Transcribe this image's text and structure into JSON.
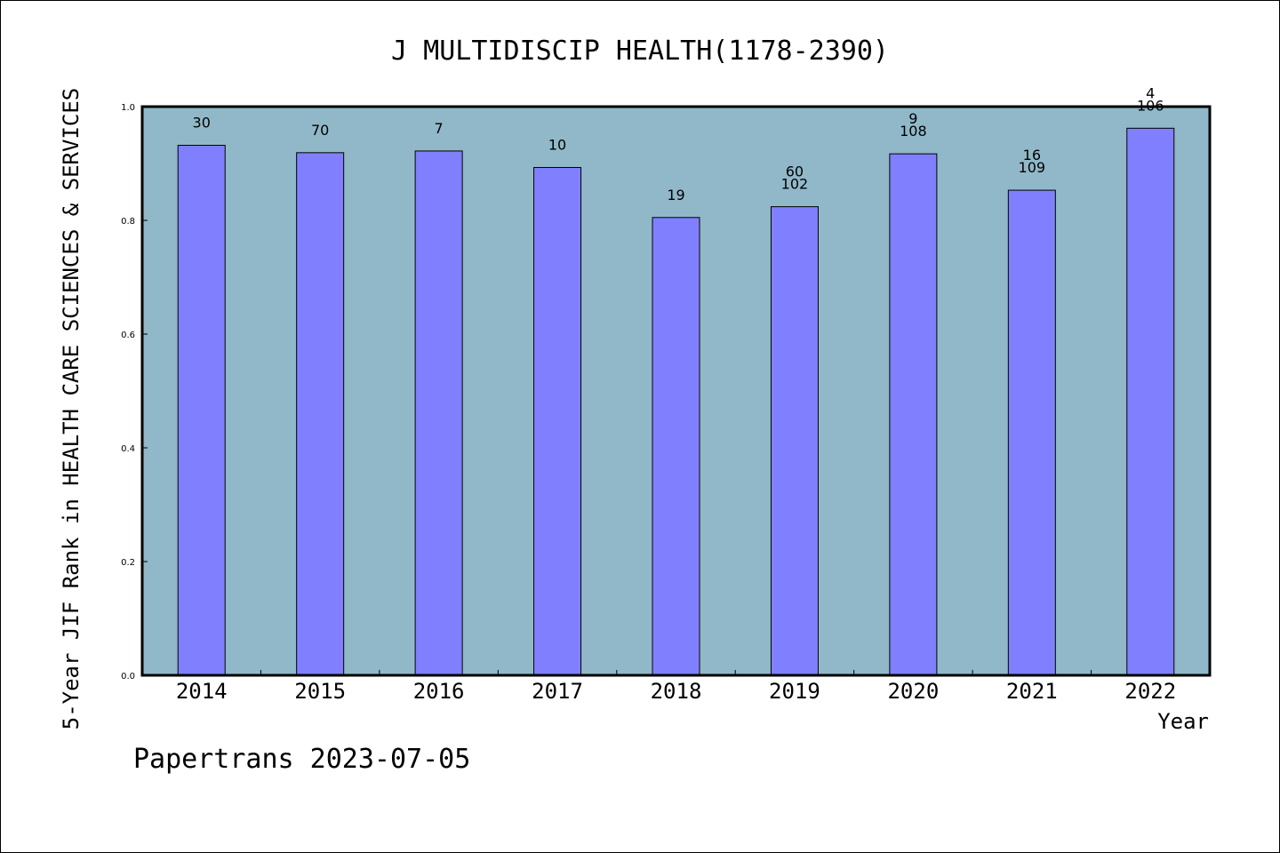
{
  "chart_data": {
    "type": "bar",
    "title": "J MULTIDISCIP HEALTH(1178-2390)",
    "xlabel": "Year",
    "ylabel": "5-Year JIF Rank in HEALTH CARE SCIENCES & SERVICES",
    "ylim": [
      0,
      1.0
    ],
    "yticks": [
      "0.0",
      "0.2",
      "0.4",
      "0.6",
      "0.8",
      "1.0"
    ],
    "grid": false,
    "colors": {
      "plot_bg": "#90b8c8",
      "bar": "#8080ff",
      "bar_edge": "#000000"
    },
    "categories": [
      "2014",
      "2015",
      "2016",
      "2017",
      "2018",
      "2019",
      "2020",
      "2021",
      "2022"
    ],
    "values": [
      0.932,
      0.919,
      0.922,
      0.893,
      0.805,
      0.824,
      0.917,
      0.853,
      0.962
    ],
    "labels": [
      [
        "30"
      ],
      [
        "70"
      ],
      [
        "7"
      ],
      [
        "10"
      ],
      [
        "19"
      ],
      [
        "60",
        "102"
      ],
      [
        "9",
        "108"
      ],
      [
        "16",
        "109"
      ],
      [
        "4",
        "106"
      ]
    ]
  },
  "footer": "Papertrans 2023-07-05"
}
